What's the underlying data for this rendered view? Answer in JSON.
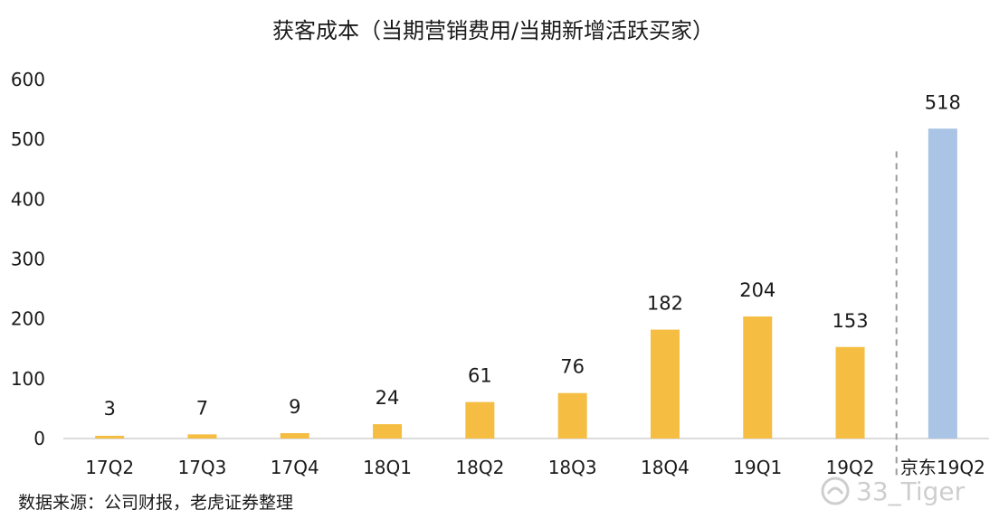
{
  "chart_data": {
    "type": "bar",
    "title": "获客成本（当期营销费用/当期新增活跃买家）",
    "categories": [
      "17Q2",
      "17Q3",
      "17Q4",
      "18Q1",
      "18Q2",
      "18Q3",
      "18Q4",
      "19Q1",
      "19Q2",
      "京东19Q2"
    ],
    "values": [
      3,
      7,
      9,
      24,
      61,
      76,
      182,
      204,
      153,
      518
    ],
    "data_labels": [
      "3",
      "7",
      "9",
      "24",
      "61",
      "76",
      "182",
      "204",
      "153",
      "518"
    ],
    "colors": [
      "#F5BE42",
      "#F5BE42",
      "#F5BE42",
      "#F5BE42",
      "#F5BE42",
      "#F5BE42",
      "#F5BE42",
      "#F5BE42",
      "#F5BE42",
      "#A9C4E4"
    ],
    "yticks": [
      "0",
      "100",
      "200",
      "300",
      "400",
      "500",
      "600"
    ],
    "ylim": [
      0,
      600
    ],
    "grid": false,
    "separator": "dashed line between 19Q2 and 京东19Q2"
  },
  "source_note": "数据来源：公司财报，老虎证券整理",
  "watermark": "33_Tiger"
}
